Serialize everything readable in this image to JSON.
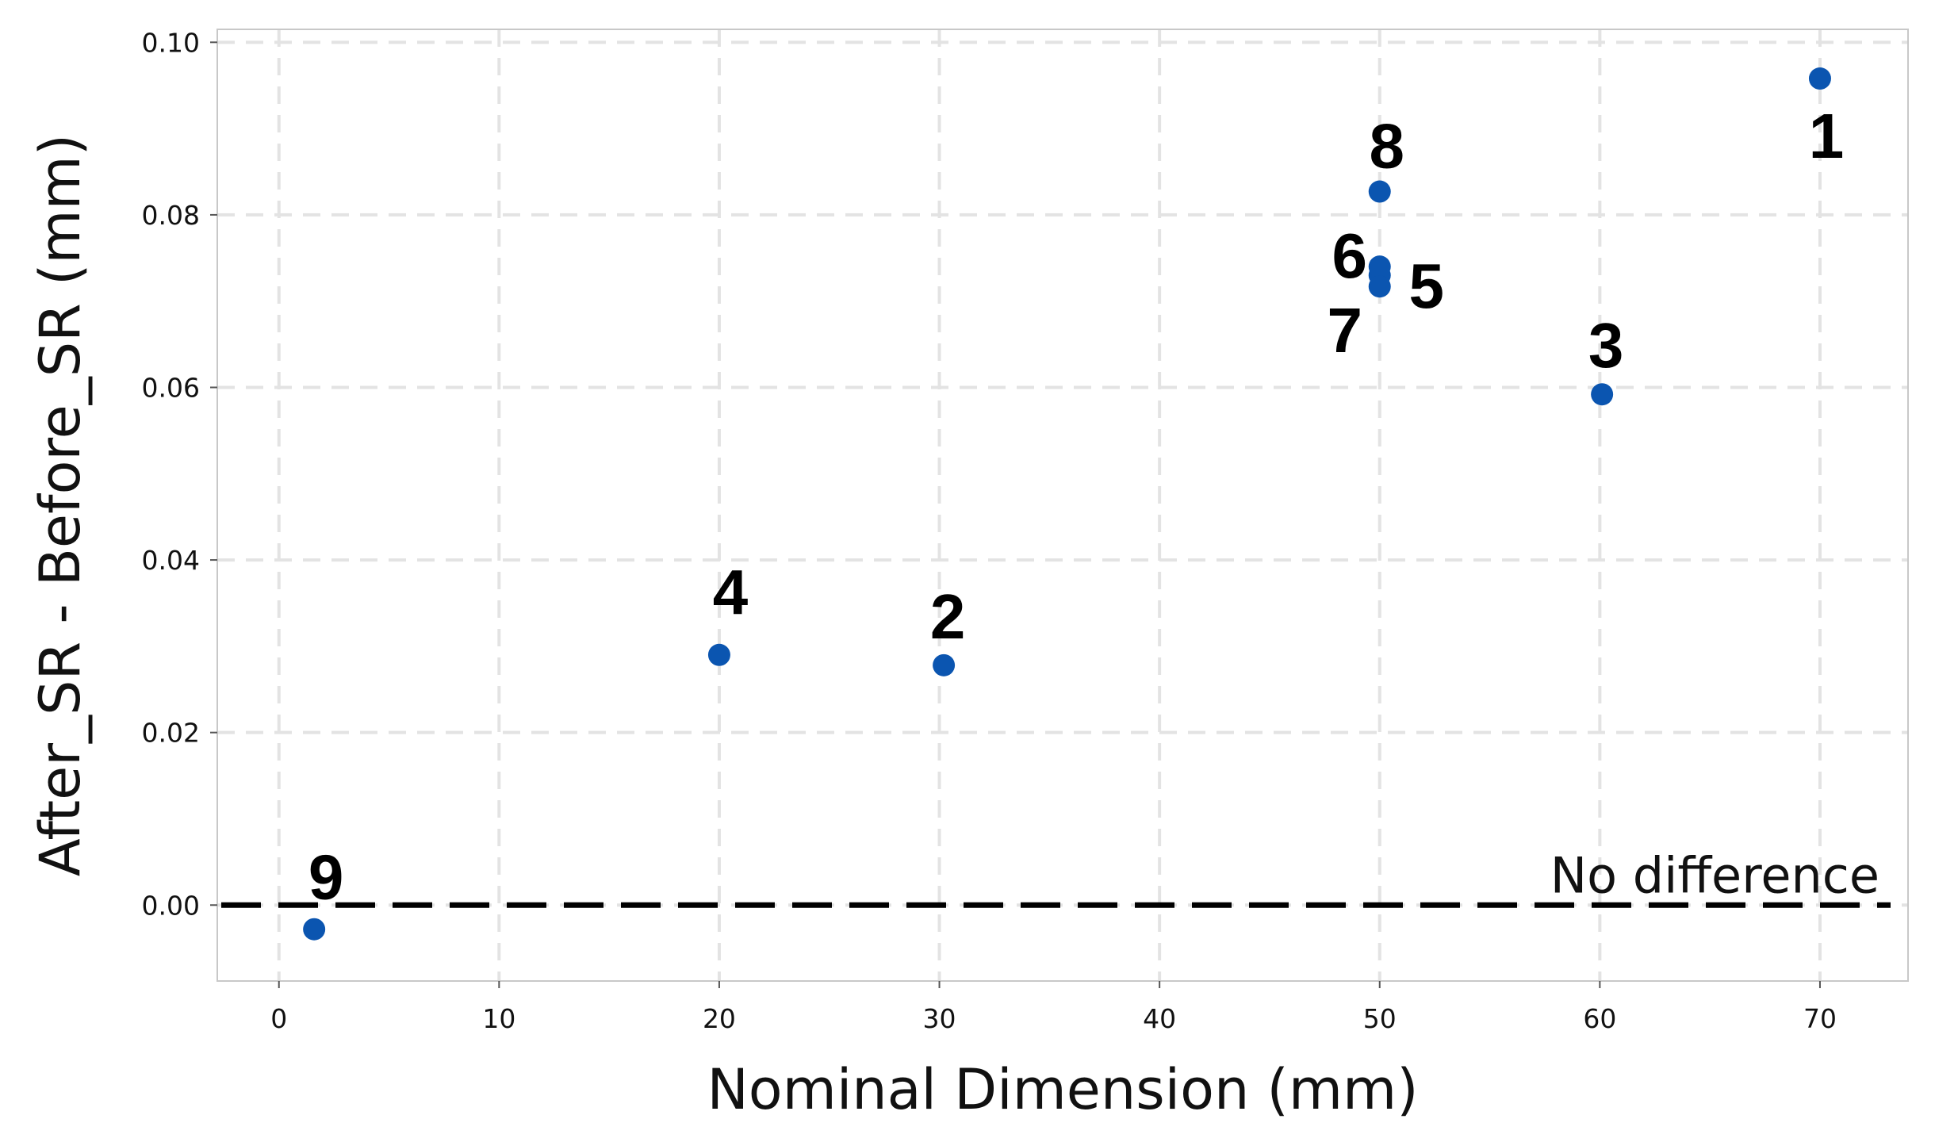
{
  "chart_data": {
    "type": "scatter",
    "title": "",
    "xlabel": "Nominal Dimension (mm)",
    "ylabel": "After_SR - Before_SR (mm)",
    "xlim": [
      -2.8,
      74
    ],
    "ylim": [
      -0.0088,
      0.1015
    ],
    "x_ticks": [
      0,
      10,
      20,
      30,
      40,
      50,
      60,
      70
    ],
    "y_ticks": [
      0.0,
      0.02,
      0.04,
      0.06,
      0.08,
      0.1
    ],
    "x_tick_labels": [
      "0",
      "10",
      "20",
      "30",
      "40",
      "50",
      "60",
      "70"
    ],
    "y_tick_labels": [
      "0.00",
      "0.02",
      "0.04",
      "0.06",
      "0.08",
      "0.10"
    ],
    "grid": true,
    "marker_color": "#0b55b0",
    "points": [
      {
        "label": "1",
        "x": 70.0,
        "y": 0.0958
      },
      {
        "label": "2",
        "x": 30.2,
        "y": 0.0278
      },
      {
        "label": "3",
        "x": 60.1,
        "y": 0.0592
      },
      {
        "label": "4",
        "x": 20.0,
        "y": 0.029
      },
      {
        "label": "5",
        "x": 50.0,
        "y": 0.073
      },
      {
        "label": "6",
        "x": 50.0,
        "y": 0.074
      },
      {
        "label": "7",
        "x": 50.0,
        "y": 0.0717
      },
      {
        "label": "8",
        "x": 50.0,
        "y": 0.0827
      },
      {
        "label": "9",
        "x": 1.6,
        "y": -0.0028
      }
    ],
    "reference_line": {
      "y": 0.0,
      "label": "No difference",
      "style": "dashed",
      "color": "#000000"
    }
  }
}
